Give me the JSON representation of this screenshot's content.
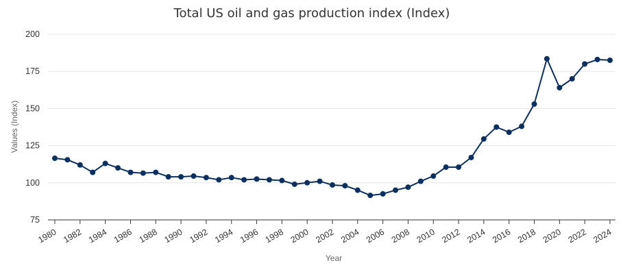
{
  "chart_data": {
    "type": "line",
    "title": "Total US oil and gas production index (Index)",
    "xlabel": "Year",
    "ylabel": "Values (Index)",
    "xlim": [
      1980,
      2024
    ],
    "ylim": [
      75,
      200
    ],
    "yticks": [
      75,
      100,
      125,
      150,
      175,
      200
    ],
    "xticks": [
      1980,
      1982,
      1984,
      1986,
      1988,
      1990,
      1992,
      1994,
      1996,
      1998,
      2000,
      2002,
      2004,
      2006,
      2008,
      2010,
      2012,
      2014,
      2016,
      2018,
      2020,
      2022,
      2024
    ],
    "grid": true,
    "legend": "none",
    "color": "#0b2f5e",
    "series": [
      {
        "x": [
          1980,
          1981,
          1982,
          1983,
          1984,
          1985,
          1986,
          1987,
          1988,
          1989,
          1990,
          1991,
          1992,
          1993,
          1994,
          1995,
          1996,
          1997,
          1998,
          1999,
          2000,
          2001,
          2002,
          2003,
          2004,
          2005,
          2006,
          2007,
          2008,
          2009,
          2010,
          2011,
          2012,
          2013,
          2014,
          2015,
          2016,
          2017,
          2018,
          2019,
          2020,
          2021,
          2022,
          2023,
          2024
        ],
        "values": [
          116.5,
          115.5,
          112,
          107,
          113,
          110,
          107,
          106.5,
          107,
          104,
          104,
          104.5,
          103.5,
          102,
          103.5,
          102,
          102.5,
          102,
          101.5,
          99,
          100,
          101,
          98.5,
          98,
          95,
          91.5,
          92.5,
          95,
          97,
          101,
          104.5,
          110.5,
          110.5,
          117,
          129.5,
          137.5,
          134,
          138,
          153,
          183.5,
          164,
          170,
          180,
          183,
          182.5
        ]
      }
    ]
  }
}
